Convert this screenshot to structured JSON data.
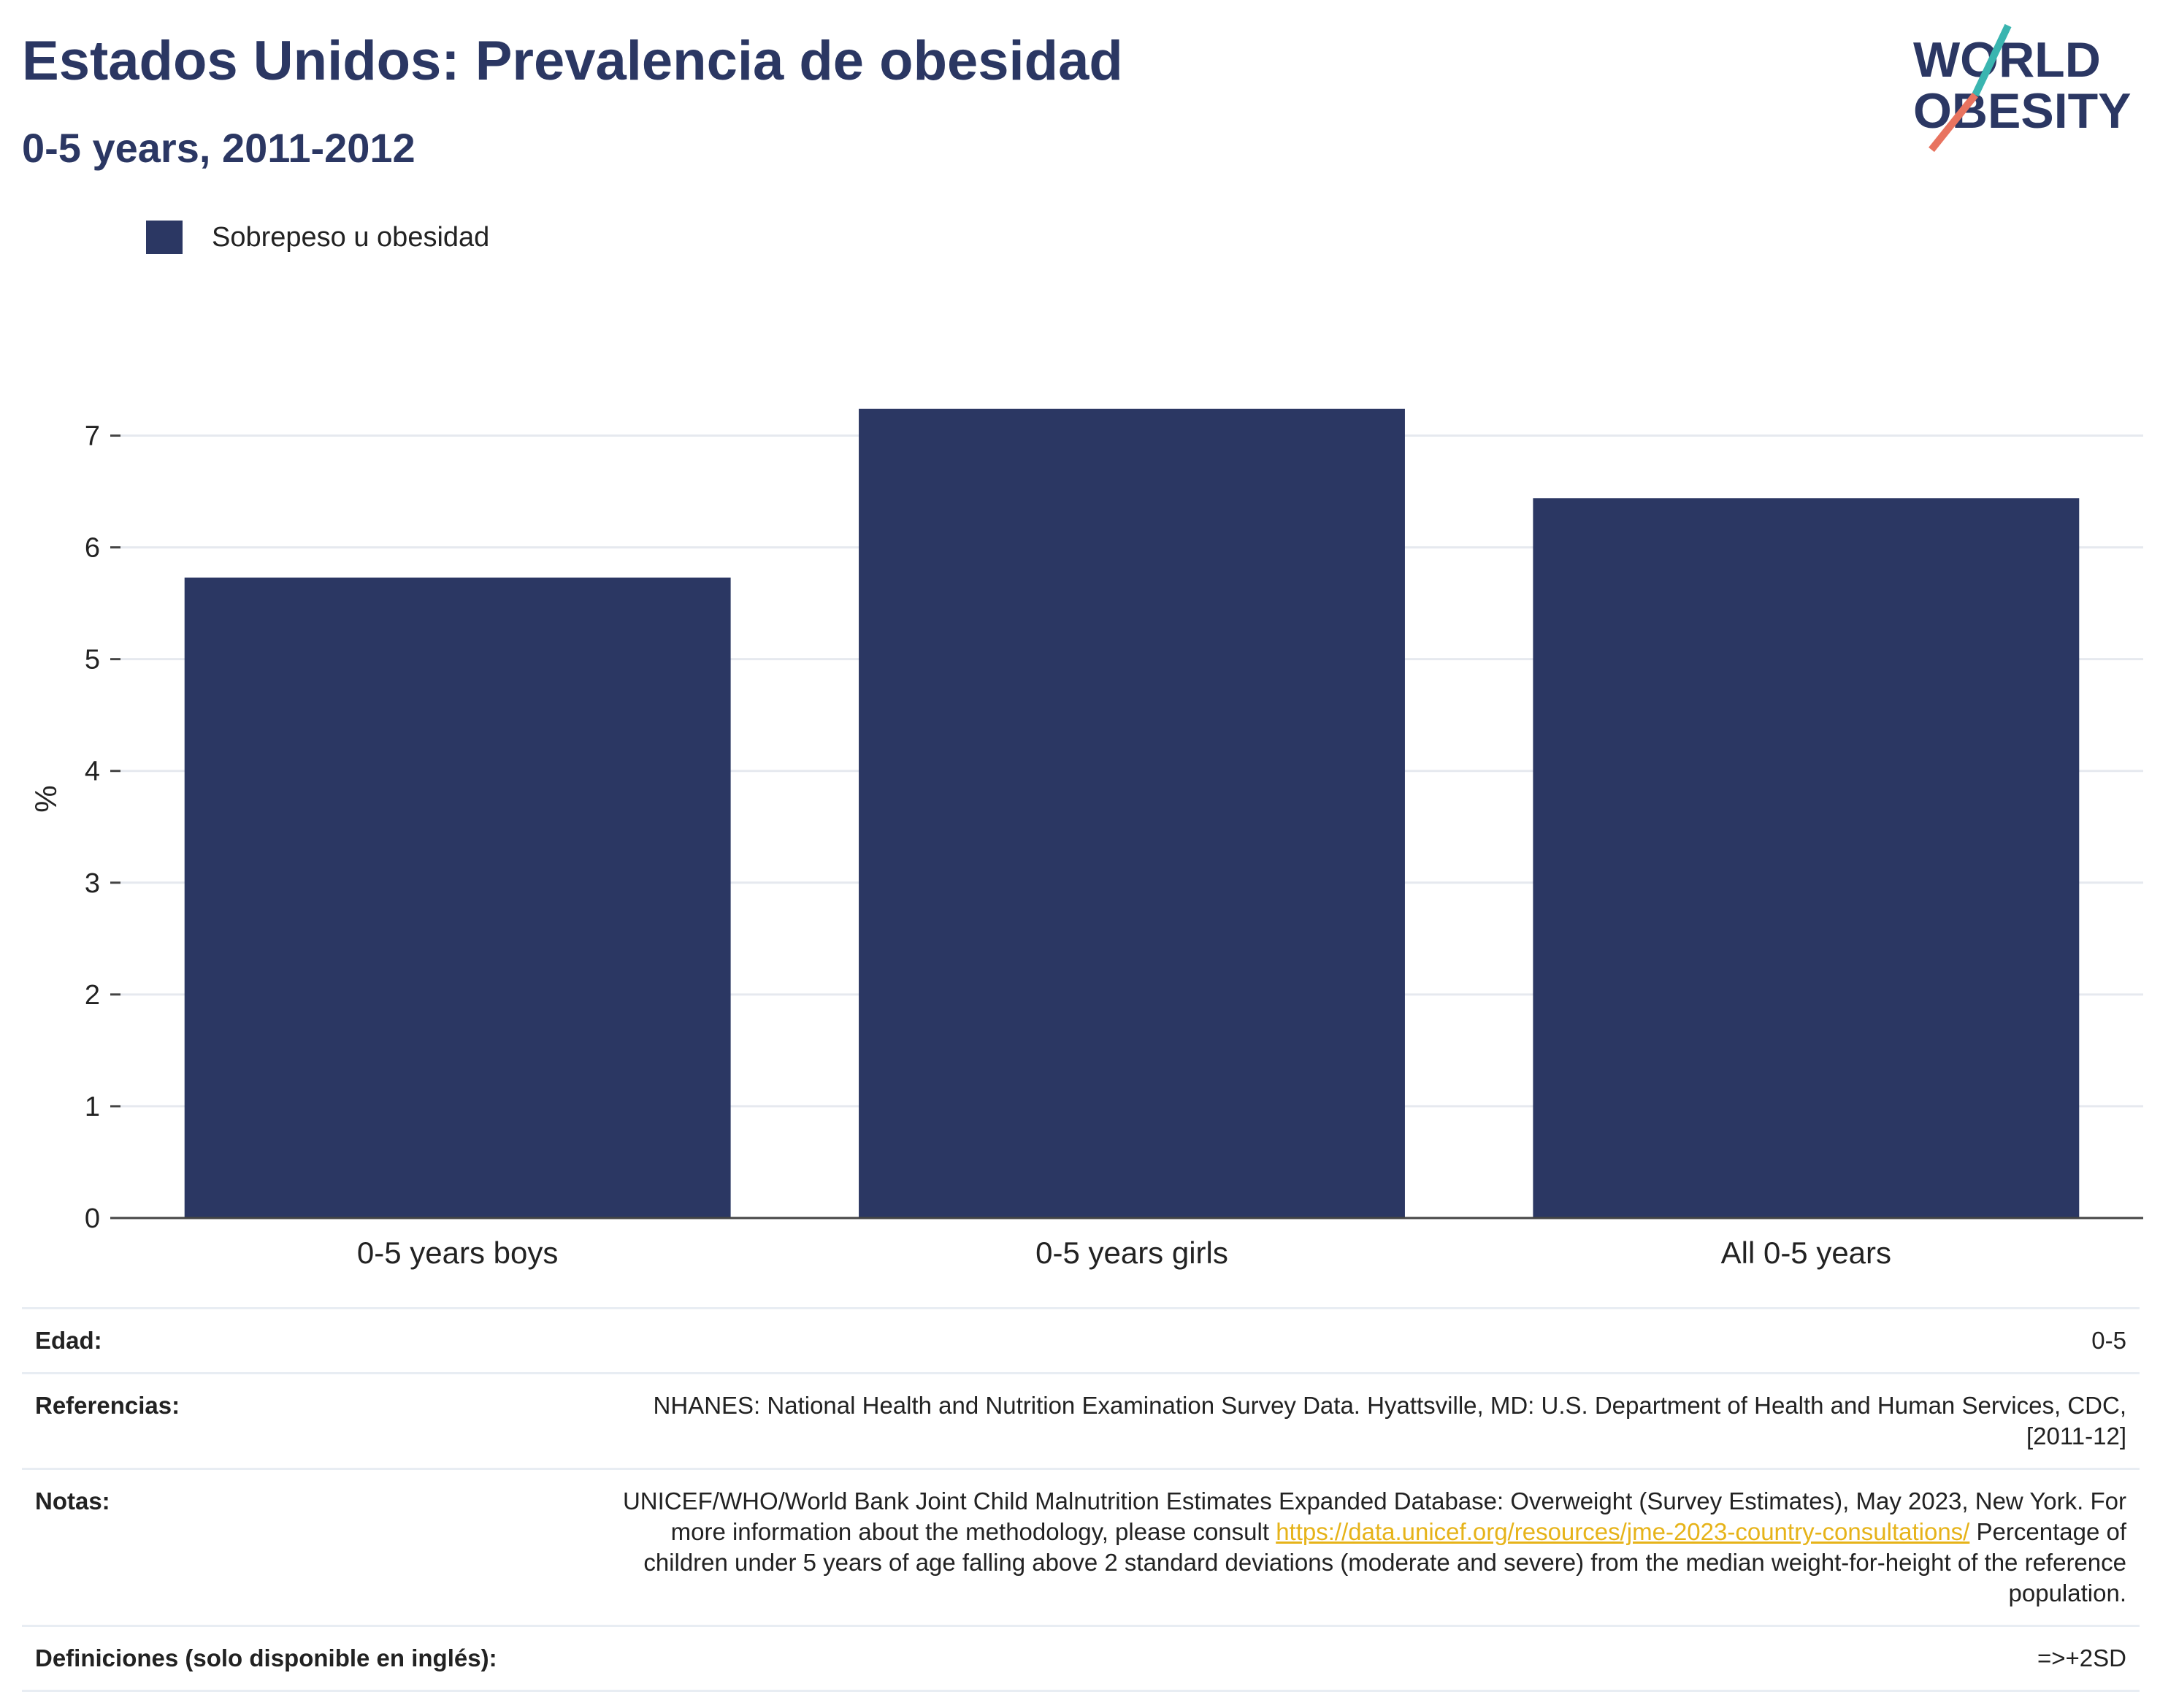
{
  "header": {
    "title": "Estados Unidos: Prevalencia de obesidad",
    "subtitle": "0-5 years, 2011-2012"
  },
  "logo": {
    "line1": "WORLD",
    "line2": "OBESITY",
    "accent_teal": "#3ab5b0",
    "accent_coral": "#e8735f",
    "text_color": "#2b3763"
  },
  "colors": {
    "bar": "#2b3763",
    "grid": "#e6e9ef",
    "axis": "#444444"
  },
  "chart_data": {
    "type": "bar",
    "categories": [
      "0-5 years boys",
      "0-5 years girls",
      "All 0-5 years"
    ],
    "series": [
      {
        "name": "Sobrepeso u obesidad",
        "values": [
          5.73,
          7.24,
          6.44
        ]
      }
    ],
    "ylabel": "%",
    "ylim": [
      0,
      7.5
    ],
    "yticks": [
      0,
      1,
      2,
      3,
      4,
      5,
      6,
      7
    ],
    "grid": true,
    "legend": "top-left"
  },
  "info": {
    "age_label": "Edad:",
    "age_value": "0-5",
    "refs_label": "Referencias:",
    "refs_value": "NHANES: National Health and Nutrition Examination Survey Data. Hyattsville, MD: U.S. Department of Health and Human Services, CDC, [2011-12]",
    "notes_label": "Notas:",
    "notes_text1": "UNICEF/WHO/World Bank Joint Child Malnutrition Estimates Expanded Database: Overweight (Survey Estimates), May 2023, New York. For more information about the methodology, please consult",
    "notes_link": "https://data.unicef.org/resources/jme-2023-country-consultations/",
    "notes_text2": "Percentage of children under 5 years of age falling above 2 standard deviations (moderate and severe) from the median weight-for-height of the reference population.",
    "defs_label": "Definiciones (solo disponible en inglés):",
    "defs_value": "=>+2SD"
  }
}
